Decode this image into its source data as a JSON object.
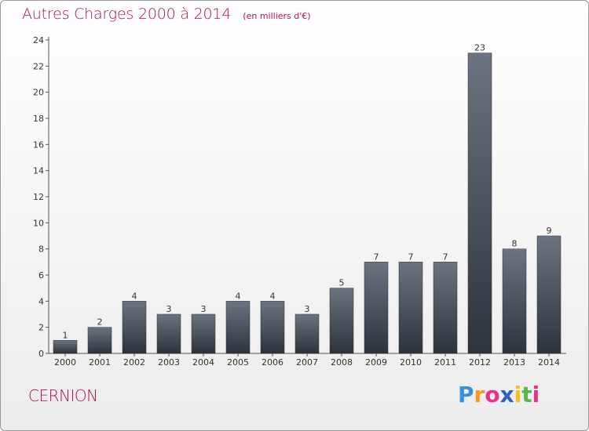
{
  "header": {
    "title": "Autres Charges 2000 à 2014",
    "subtitle": "(en milliers d'€)"
  },
  "footer": {
    "commune": "CERNION",
    "logo": {
      "letters": [
        "P",
        "r",
        "o",
        "x",
        "i",
        "t",
        "i"
      ],
      "colors": [
        "#3a8fd8",
        "#f29a1c",
        "#e8318a",
        "#2a63b8",
        "#f2c11c",
        "#58b947",
        "#e8318a"
      ]
    }
  },
  "chart_data": {
    "type": "bar",
    "categories": [
      "2000",
      "2001",
      "2002",
      "2003",
      "2004",
      "2005",
      "2006",
      "2007",
      "2008",
      "2009",
      "2010",
      "2011",
      "2012",
      "2013",
      "2014"
    ],
    "values": [
      1,
      2,
      4,
      3,
      3,
      4,
      4,
      3,
      5,
      7,
      7,
      7,
      23,
      8,
      9
    ],
    "ylim": [
      0,
      24
    ],
    "yticks": [
      0,
      2,
      4,
      6,
      8,
      10,
      12,
      14,
      16,
      18,
      20,
      22,
      24
    ],
    "grid": false,
    "legend": "none",
    "colors": {
      "bar_top": "#6b7480",
      "bar_bottom": "#2c333b",
      "title": "#b0104a"
    }
  }
}
